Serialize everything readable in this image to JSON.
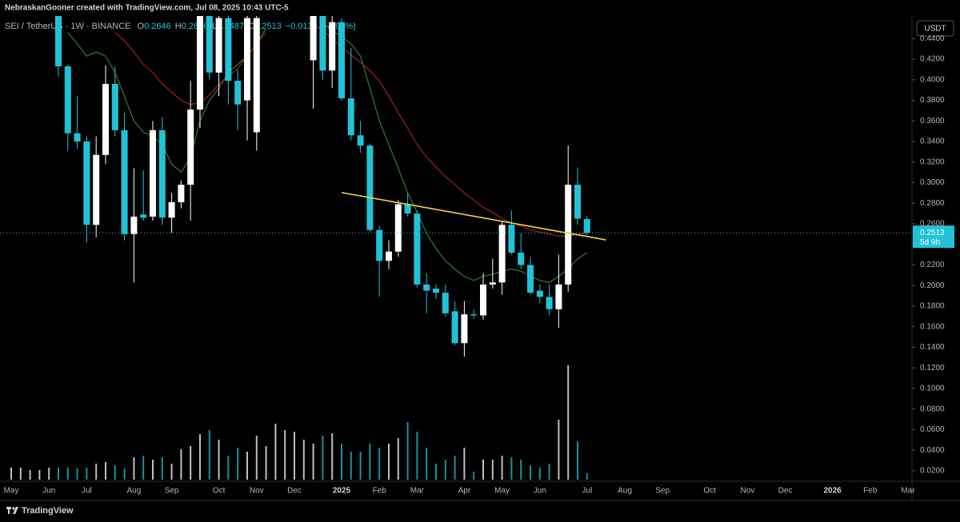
{
  "chart_data": {
    "type": "candlestick",
    "attribution": "NebraskanGooner created with TradingView.com, Jul 08, 2025 10:43 UTC-5",
    "symbol": "SEI / TetherUS · 1W · BINANCE",
    "ohlc": [
      {
        "label": "O",
        "value": 0.2646
      },
      {
        "label": "H",
        "value": 0.2676
      },
      {
        "label": "L",
        "value": 0.2487
      },
      {
        "label": "C",
        "value": 0.2513
      }
    ],
    "change": "−0.0132 (−4.99%)",
    "currency": "USDT",
    "last_price": 0.2513,
    "countdown": "5d 9h",
    "brand": "TradingView",
    "up_color": "#ffffff",
    "down_color": "#22c2d6",
    "categories": [
      "May",
      null,
      null,
      null,
      "Jun",
      null,
      null,
      null,
      "Jul",
      null,
      null,
      null,
      null,
      "Aug",
      null,
      null,
      null,
      "Sep",
      null,
      null,
      null,
      null,
      "Oct",
      null,
      null,
      null,
      "Nov",
      null,
      null,
      null,
      "Dec",
      null,
      null,
      null,
      null,
      "2025",
      null,
      null,
      null,
      "Feb",
      null,
      null,
      null,
      "Mar",
      null,
      null,
      null,
      null,
      "Apr",
      null,
      null,
      null,
      "May",
      null,
      null,
      null,
      "Jun",
      null,
      null,
      null,
      null,
      "Jul",
      null,
      null,
      null,
      "Aug",
      null,
      null,
      null,
      "Sep",
      null,
      null,
      null,
      null,
      "Oct",
      null,
      null,
      null,
      "Nov",
      null,
      null,
      null,
      "Dec",
      null,
      null,
      null,
      null,
      "2026",
      null,
      null,
      null,
      "Feb",
      null,
      null,
      null,
      "Mar",
      null
    ],
    "open": [
      null,
      null,
      null,
      null,
      null,
      0.47,
      0.413,
      0.348,
      0.34,
      0.259,
      0.327,
      0.396,
      0.351,
      0.25,
      0.269,
      0.267,
      0.351,
      0.266,
      0.281,
      0.298,
      0.371,
      0.47,
      0.407,
      0.46,
      0.399,
      0.38,
      0.349,
      null,
      null,
      null,
      null,
      null,
      0.419,
      0.47,
      0.409,
      0.456,
      0.382,
      0.346,
      0.336,
      0.254,
      0.224,
      0.233,
      0.279,
      0.27,
      0.201,
      0.197,
      0.193,
      0.175,
      0.144,
      0.172,
      0.171,
      0.201,
      0.203,
      0.259,
      0.232,
      0.22,
      0.195,
      0.189,
      0.177,
      0.201,
      0.298,
      0.2646,
      null,
      null,
      null,
      null,
      null,
      null,
      null,
      null,
      null,
      null,
      null,
      null,
      null,
      null,
      null,
      null,
      null,
      null,
      null,
      null,
      null,
      null,
      null,
      null,
      null,
      null,
      null,
      null,
      null,
      null,
      null,
      null,
      null,
      null,
      null
    ],
    "high": [
      null,
      null,
      null,
      null,
      null,
      0.48,
      0.415,
      0.384,
      0.345,
      0.345,
      0.414,
      0.413,
      0.368,
      0.314,
      0.312,
      0.36,
      0.364,
      0.29,
      0.302,
      0.399,
      0.48,
      0.48,
      0.48,
      0.47,
      0.41,
      0.47,
      0.47,
      null,
      null,
      null,
      null,
      null,
      0.48,
      0.48,
      0.47,
      0.46,
      0.431,
      0.36,
      0.338,
      0.258,
      0.244,
      0.283,
      0.29,
      0.273,
      0.212,
      0.201,
      0.201,
      0.185,
      0.185,
      0.177,
      0.212,
      0.226,
      0.262,
      0.273,
      0.251,
      0.228,
      0.201,
      0.201,
      0.23,
      0.336,
      0.315,
      0.2676,
      null,
      null,
      null,
      null,
      null,
      null,
      null,
      null,
      null,
      null,
      null,
      null,
      null,
      null,
      null,
      null,
      null,
      null,
      null,
      null,
      null,
      null,
      null,
      null,
      null,
      null,
      null,
      null,
      null,
      null,
      null,
      null,
      null,
      null,
      null
    ],
    "low": [
      null,
      null,
      null,
      null,
      null,
      0.403,
      0.331,
      0.333,
      0.242,
      0.247,
      0.318,
      0.345,
      0.244,
      0.203,
      0.263,
      0.263,
      0.259,
      0.251,
      0.275,
      0.263,
      0.353,
      0.4,
      0.384,
      0.376,
      0.351,
      0.341,
      0.331,
      null,
      null,
      null,
      null,
      null,
      0.372,
      0.4,
      0.392,
      0.38,
      0.341,
      0.329,
      0.252,
      0.189,
      0.216,
      0.228,
      0.267,
      0.198,
      0.173,
      0.187,
      0.17,
      0.142,
      0.131,
      0.168,
      0.167,
      0.197,
      0.191,
      0.23,
      0.216,
      0.191,
      0.183,
      0.171,
      0.159,
      0.194,
      0.259,
      0.2487,
      null,
      null,
      null,
      null,
      null,
      null,
      null,
      null,
      null,
      null,
      null,
      null,
      null,
      null,
      null,
      null,
      null,
      null,
      null,
      null,
      null,
      null,
      null,
      null,
      null,
      null,
      null,
      null,
      null,
      null,
      null,
      null,
      null,
      null,
      null
    ],
    "close": [
      null,
      null,
      null,
      null,
      null,
      0.413,
      0.348,
      0.34,
      0.259,
      0.327,
      0.396,
      0.351,
      0.25,
      0.267,
      0.266,
      0.351,
      0.266,
      0.281,
      0.298,
      0.371,
      0.47,
      0.407,
      0.46,
      0.399,
      0.376,
      0.46,
      0.46,
      null,
      null,
      null,
      null,
      null,
      0.47,
      0.409,
      0.456,
      0.382,
      0.346,
      0.336,
      0.254,
      0.224,
      0.233,
      0.279,
      0.27,
      0.201,
      0.195,
      0.193,
      0.173,
      0.144,
      0.172,
      0.171,
      0.201,
      0.203,
      0.259,
      0.232,
      0.22,
      0.193,
      0.189,
      0.177,
      0.201,
      0.298,
      0.265,
      0.2513,
      null,
      null,
      null,
      null,
      null,
      null,
      null,
      null,
      null,
      null,
      null,
      null,
      null,
      null,
      null,
      null,
      null,
      null,
      null,
      null,
      null,
      null,
      null,
      null,
      null,
      null,
      null,
      null,
      null,
      null,
      null,
      null,
      null,
      null,
      null
    ],
    "volume": [
      15,
      15,
      12,
      12,
      15,
      15,
      15,
      14,
      15,
      20,
      22,
      18,
      14,
      28,
      30,
      25,
      28,
      20,
      38,
      42,
      57,
      62,
      50,
      30,
      40,
      35,
      55,
      42,
      70,
      62,
      60,
      50,
      45,
      55,
      58,
      45,
      35,
      35,
      45,
      40,
      45,
      52,
      72,
      60,
      40,
      20,
      25,
      30,
      40,
      10,
      25,
      25,
      30,
      28,
      25,
      18,
      15,
      20,
      75,
      143,
      48,
      8,
      null,
      null,
      null,
      null,
      null,
      null,
      null,
      null,
      null,
      null,
      null,
      null,
      null,
      null,
      null,
      null,
      null,
      null,
      null,
      null,
      null,
      null,
      null,
      null,
      null,
      null,
      null,
      null,
      null,
      null,
      null,
      null,
      null,
      null,
      null
    ],
    "volume_lim": [
      0,
      150
    ],
    "moving_averages": [
      {
        "color": "#2f7d32",
        "values": [
          null,
          null,
          null,
          null,
          null,
          null,
          0.446,
          0.435,
          0.423,
          0.427,
          0.423,
          0.407,
          0.384,
          0.36,
          0.349,
          0.345,
          0.337,
          0.318,
          0.31,
          0.325,
          0.36,
          0.38,
          0.392,
          0.407,
          0.415,
          0.423,
          0.435,
          0.45,
          null,
          null,
          null,
          null,
          null,
          0.454,
          0.448,
          0.442,
          0.435,
          0.423,
          0.392,
          0.36,
          0.337,
          0.314,
          0.29,
          0.271,
          0.251,
          0.236,
          0.224,
          0.216,
          0.209,
          0.205,
          0.209,
          0.211,
          0.214,
          0.216,
          0.214,
          0.209,
          0.205,
          0.203,
          0.209,
          0.216,
          0.226,
          0.232,
          null,
          null,
          null,
          null,
          null,
          null,
          null,
          null,
          null,
          null,
          null,
          null,
          null,
          null,
          null,
          null,
          null,
          null,
          null,
          null,
          null,
          null,
          null,
          null,
          null,
          null,
          null,
          null,
          null,
          null,
          null,
          null,
          null,
          null,
          null
        ]
      },
      {
        "color": "#a3201e",
        "values": [
          null,
          null,
          null,
          null,
          null,
          null,
          null,
          null,
          null,
          null,
          null,
          0.446,
          0.438,
          0.427,
          0.415,
          0.407,
          0.396,
          0.388,
          0.38,
          0.376,
          0.378,
          0.385,
          0.396,
          0.403,
          0.411,
          0.423,
          0.435,
          0.446,
          null,
          null,
          null,
          null,
          0.454,
          0.448,
          0.44,
          0.432,
          0.424,
          0.417,
          0.409,
          0.399,
          0.384,
          0.368,
          0.353,
          0.337,
          0.325,
          0.315,
          0.306,
          0.298,
          0.29,
          0.283,
          0.276,
          0.271,
          0.265,
          0.261,
          0.258,
          0.254,
          0.252,
          0.25,
          0.248,
          0.248,
          0.25,
          0.251,
          null,
          null,
          null,
          null,
          null,
          null,
          null,
          null,
          null,
          null,
          null,
          null,
          null,
          null,
          null,
          null,
          null,
          null,
          null,
          null,
          null,
          null,
          null,
          null,
          null,
          null,
          null,
          null,
          null,
          null,
          null,
          null,
          null,
          null,
          null
        ]
      }
    ],
    "trendline": {
      "start": [
        35,
        0.2904
      ],
      "end": [
        63,
        0.2444
      ],
      "color": "#f3d34a"
    },
    "ylim": [
      0.0098,
      0.462
    ],
    "yticks": [
      {
        "value": 0.02,
        "label": "0.0200"
      },
      {
        "value": 0.04,
        "label": "0.0400"
      },
      {
        "value": 0.06,
        "label": "0.0600"
      },
      {
        "value": 0.08,
        "label": "0.0800"
      },
      {
        "value": 0.1,
        "label": "0.1000"
      },
      {
        "value": 0.12,
        "label": "0.1200"
      },
      {
        "value": 0.14,
        "label": "0.1400"
      },
      {
        "value": 0.16,
        "label": "0.1600"
      },
      {
        "value": 0.18,
        "label": "0.1800"
      },
      {
        "value": 0.2,
        "label": "0.2000"
      },
      {
        "value": 0.22,
        "label": "0.2200"
      },
      {
        "value": 0.24,
        "label": "0.2400"
      },
      {
        "value": 0.26,
        "label": "0.2600"
      },
      {
        "value": 0.28,
        "label": "0.2800"
      },
      {
        "value": 0.3,
        "label": "0.3000"
      },
      {
        "value": 0.32,
        "label": "0.3200"
      },
      {
        "value": 0.34,
        "label": "0.3400"
      },
      {
        "value": 0.36,
        "label": "0.3600"
      },
      {
        "value": 0.38,
        "label": "0.3800"
      },
      {
        "value": 0.4,
        "label": "0.4000"
      },
      {
        "value": 0.42,
        "label": "0.4200"
      },
      {
        "value": 0.44,
        "label": "0.4400"
      }
    ],
    "grid": false
  }
}
